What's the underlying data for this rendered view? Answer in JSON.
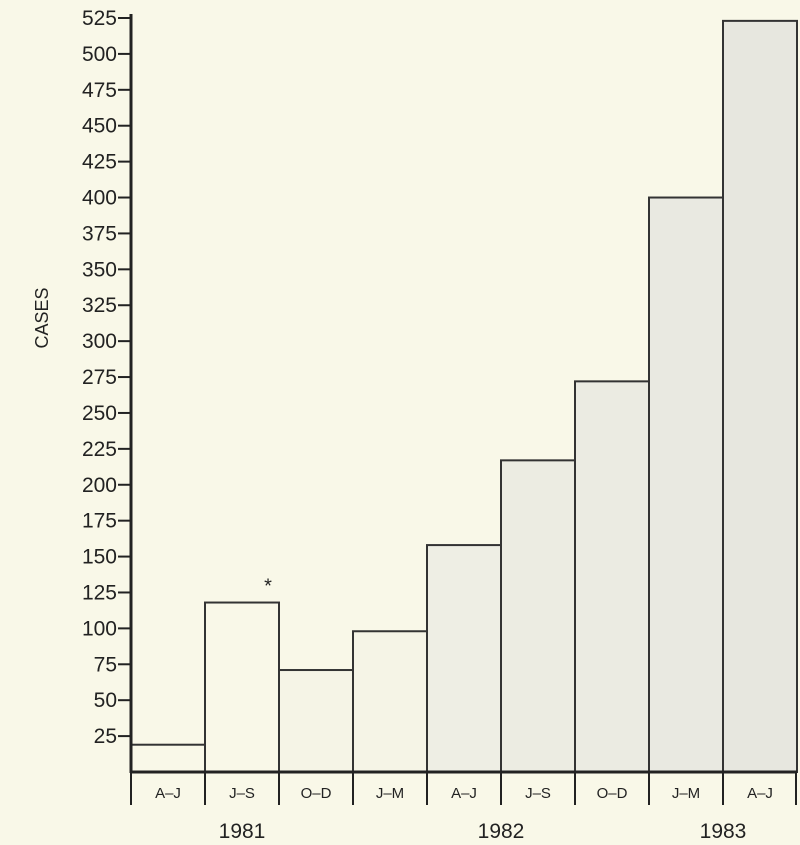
{
  "chart_data": {
    "type": "bar",
    "ylabel": "CASES",
    "ylim": [
      0,
      525
    ],
    "yticks": [
      25,
      50,
      75,
      100,
      125,
      150,
      175,
      200,
      225,
      250,
      275,
      300,
      325,
      350,
      375,
      400,
      425,
      450,
      475,
      500,
      525
    ],
    "categories": [
      "A-J",
      "J-S",
      "O-D",
      "J-M",
      "A-J",
      "J-S",
      "O-D",
      "J-M",
      "A-J"
    ],
    "values": [
      19,
      118,
      71,
      98,
      158,
      217,
      272,
      400,
      523
    ],
    "groups": [
      {
        "label": "1981",
        "categories": [
          0,
          1,
          2
        ]
      },
      {
        "label": "1982",
        "categories": [
          3,
          4,
          5,
          6
        ]
      },
      {
        "label": "1983",
        "categories": [
          7,
          8
        ]
      }
    ],
    "annotations": [
      {
        "category_index": 1,
        "text": "*"
      }
    ],
    "fill_colors": [
      "#f9f8e8",
      "#f9f8e8",
      "#f5f4e6",
      "#f5f4e6",
      "#eeeee4",
      "#ecece2",
      "#ebebe2",
      "#e9e9e1",
      "#e7e7df"
    ],
    "bar_stroke": "#333333",
    "background": "#f9f8e8"
  }
}
